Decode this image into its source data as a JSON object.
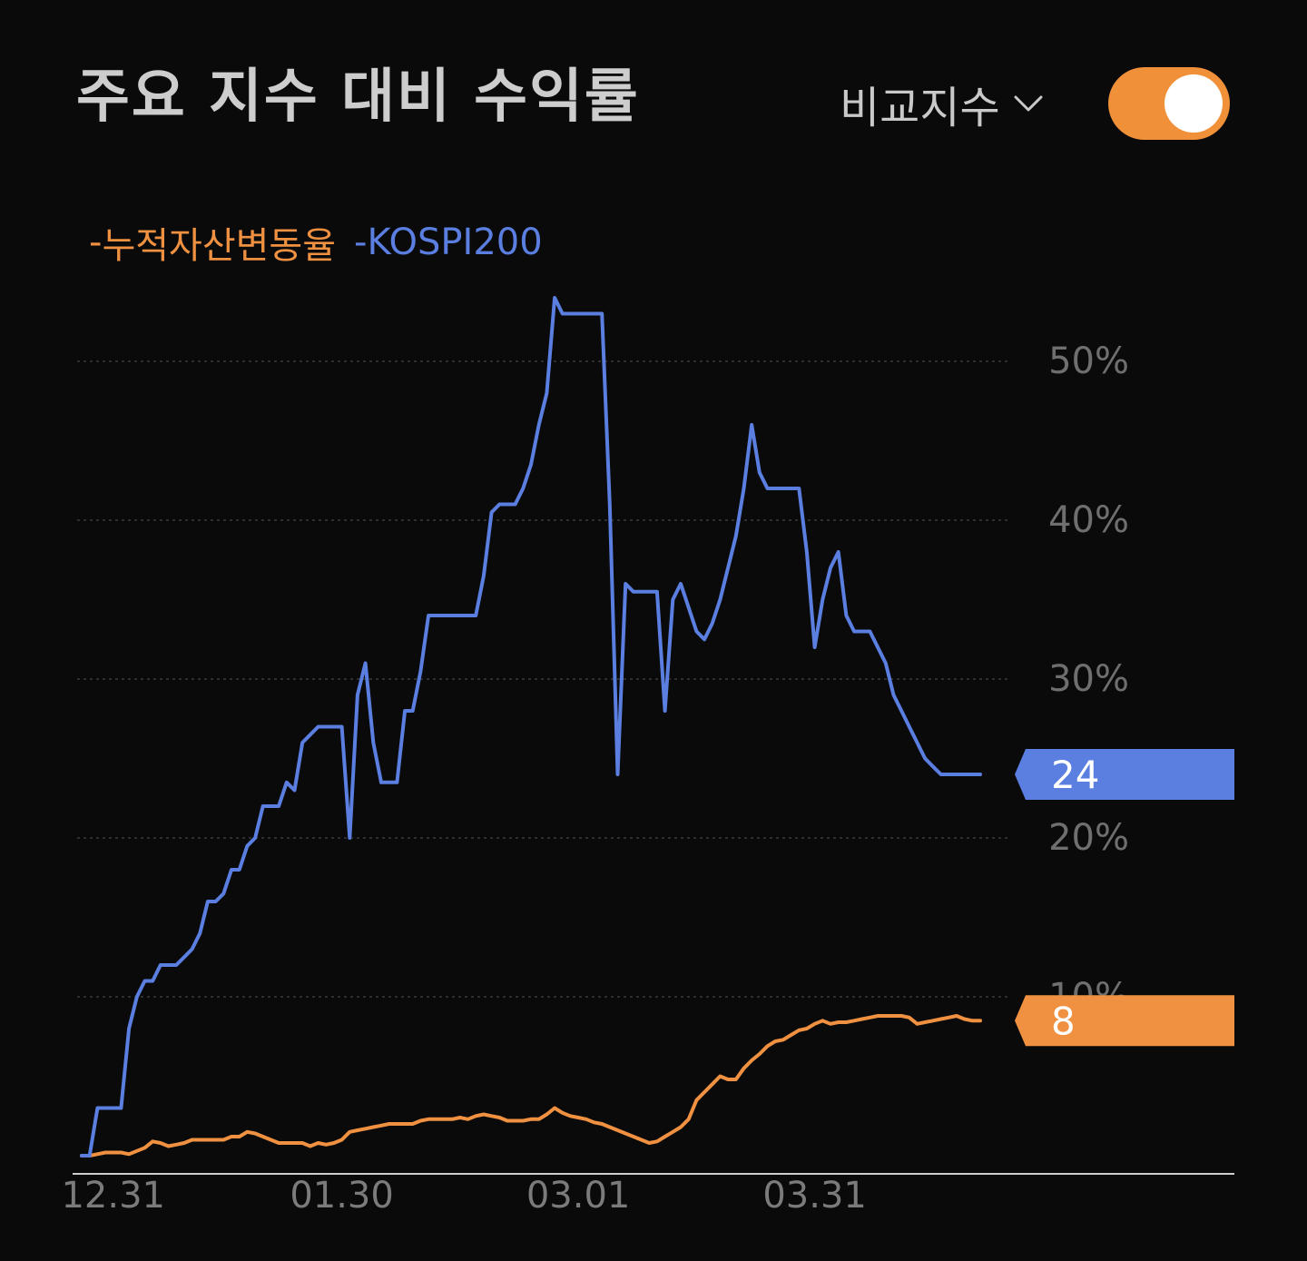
{
  "header": {
    "title": "주요 지수 대비 수익률",
    "compare_label": "비교지수",
    "toggle_on": true
  },
  "colors": {
    "portfolio": "#ef9140",
    "index": "#5b7fe0",
    "toggle": "#f0913a"
  },
  "icons": {
    "dropdown": "chevron-down-icon"
  },
  "chart_data": {
    "type": "line",
    "ylim": [
      -5,
      55
    ],
    "y_ticks": [
      {
        "value": 10,
        "label": "10%"
      },
      {
        "value": 20,
        "label": "20%"
      },
      {
        "value": 30,
        "label": "30%"
      },
      {
        "value": 40,
        "label": "40%"
      },
      {
        "value": 50,
        "label": "50%"
      }
    ],
    "x_ticks": [
      {
        "index": 4,
        "label": "12.31"
      },
      {
        "index": 33,
        "label": "01.30"
      },
      {
        "index": 63,
        "label": "03.01"
      },
      {
        "index": 93,
        "label": "03.31"
      }
    ],
    "grid": true,
    "legend": "top-left",
    "series": [
      {
        "name": "누적자산변동율",
        "end_label": "8",
        "values": [
          0.0,
          0.0,
          0.1,
          0.2,
          0.2,
          0.2,
          0.1,
          0.3,
          0.5,
          0.9,
          0.8,
          0.6,
          0.7,
          0.8,
          1.0,
          1.0,
          1.0,
          1.0,
          1.0,
          1.2,
          1.2,
          1.5,
          1.4,
          1.2,
          1.0,
          0.8,
          0.8,
          0.8,
          0.8,
          0.6,
          0.8,
          0.7,
          0.8,
          1.0,
          1.5,
          1.6,
          1.7,
          1.8,
          1.9,
          2.0,
          2.0,
          2.0,
          2.0,
          2.2,
          2.3,
          2.3,
          2.3,
          2.3,
          2.4,
          2.3,
          2.5,
          2.6,
          2.5,
          2.4,
          2.2,
          2.2,
          2.2,
          2.3,
          2.3,
          2.6,
          3.0,
          2.7,
          2.5,
          2.4,
          2.3,
          2.1,
          2.0,
          1.8,
          1.6,
          1.4,
          1.2,
          1.0,
          0.8,
          0.9,
          1.2,
          1.5,
          1.8,
          2.3,
          3.5,
          4.0,
          4.5,
          5.0,
          4.8,
          4.8,
          5.5,
          6.0,
          6.4,
          6.9,
          7.2,
          7.3,
          7.6,
          7.9,
          8.0,
          8.3,
          8.5,
          8.3,
          8.4,
          8.4,
          8.5,
          8.6,
          8.7,
          8.8,
          8.8,
          8.8,
          8.8,
          8.7,
          8.3,
          8.4,
          8.5,
          8.6,
          8.7,
          8.8,
          8.6,
          8.5,
          8.5
        ]
      },
      {
        "name": "KOSPI200",
        "end_label": "24",
        "values": [
          0.0,
          0.0,
          3.0,
          3.0,
          3.0,
          3.0,
          8.0,
          10.0,
          11.0,
          11.0,
          12.0,
          12.0,
          12.0,
          12.5,
          13.0,
          14.0,
          16.0,
          16.0,
          16.5,
          18.0,
          18.0,
          19.5,
          20.0,
          22.0,
          22.0,
          22.0,
          23.5,
          23.0,
          26.0,
          26.5,
          27.0,
          27.0,
          27.0,
          27.0,
          20.0,
          29.0,
          31.0,
          26.0,
          23.5,
          23.5,
          23.5,
          28.0,
          28.0,
          30.5,
          34.0,
          34.0,
          34.0,
          34.0,
          34.0,
          34.0,
          34.0,
          36.5,
          40.5,
          41.0,
          41.0,
          41.0,
          42.0,
          43.5,
          46.0,
          48.0,
          54.0,
          53.0,
          53.0,
          53.0,
          53.0,
          53.0,
          53.0,
          41.0,
          24.0,
          36.0,
          35.5,
          35.5,
          35.5,
          35.5,
          28.0,
          35.0,
          36.0,
          34.5,
          33.0,
          32.5,
          33.5,
          35.0,
          37.0,
          39.0,
          42.0,
          46.0,
          43.0,
          42.0,
          42.0,
          42.0,
          42.0,
          42.0,
          38.0,
          32.0,
          35.0,
          37.0,
          38.0,
          34.0,
          33.0,
          33.0,
          33.0,
          32.0,
          31.0,
          29.0,
          28.0,
          27.0,
          26.0,
          25.0,
          24.5,
          24.0,
          24.0,
          24.0,
          24.0,
          24.0,
          24.0
        ]
      }
    ]
  }
}
